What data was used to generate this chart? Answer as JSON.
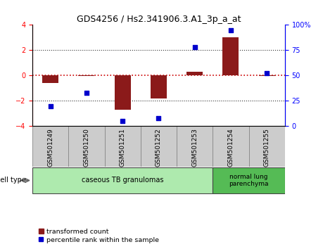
{
  "title": "GDS4256 / Hs2.341906.3.A1_3p_a_at",
  "samples": [
    "GSM501249",
    "GSM501250",
    "GSM501251",
    "GSM501252",
    "GSM501253",
    "GSM501254",
    "GSM501255"
  ],
  "transformed_count": [
    -0.6,
    -0.05,
    -2.7,
    -1.8,
    0.3,
    3.0,
    -0.05
  ],
  "percentile_rank": [
    20,
    33,
    5,
    8,
    78,
    95,
    52
  ],
  "ylim_left": [
    -4,
    4
  ],
  "ylim_right": [
    0,
    100
  ],
  "yticks_left": [
    -4,
    -2,
    0,
    2,
    4
  ],
  "yticks_right": [
    0,
    25,
    50,
    75,
    100
  ],
  "ytick_labels_right": [
    "0",
    "25",
    "50",
    "75",
    "100%"
  ],
  "bar_color": "#8B1A1A",
  "dot_color": "#0000CC",
  "hline_color": "#CC0000",
  "dotted_color": "#333333",
  "group1_color": "#AEEAAE",
  "group2_color": "#55BB55",
  "cell_type_label": "cell type",
  "legend_bar_label": "transformed count",
  "legend_dot_label": "percentile rank within the sample",
  "background_color": "#ffffff",
  "sample_box_color": "#CCCCCC",
  "sample_box_edge": "#888888"
}
